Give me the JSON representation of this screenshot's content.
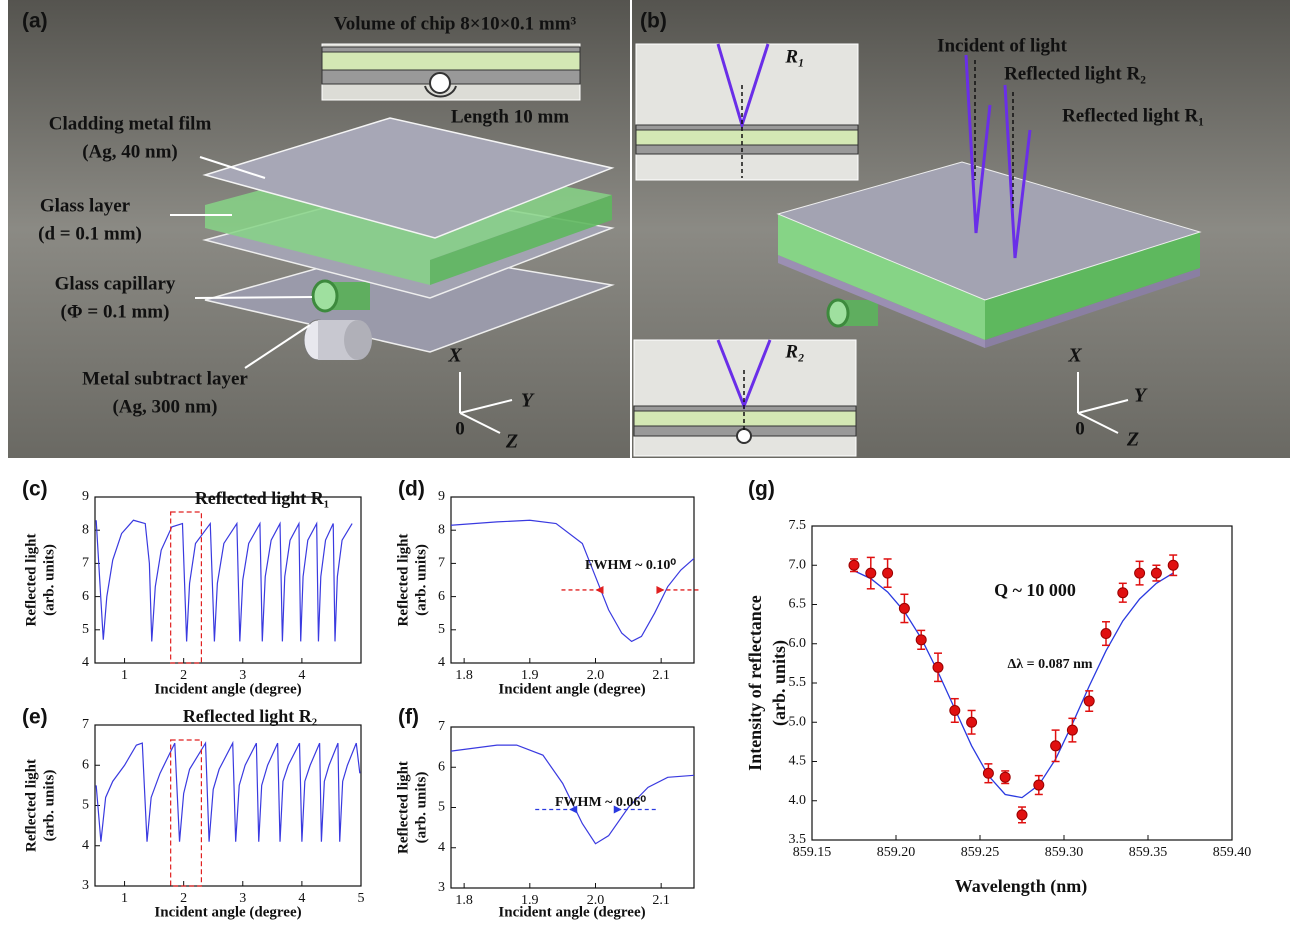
{
  "panels": [
    {
      "label": "(a)",
      "texts": [
        "Volume of chip 8×10×0.1 mm³",
        "Length 10 mm",
        "Cladding metal film",
        "(Ag, 40 nm)",
        "Glass layer",
        "(d = 0.1 mm)",
        "Glass capillary",
        "(Φ = 0.1 mm)",
        "Metal subtract layer",
        "(Ag, 300 nm)"
      ],
      "axes": [
        "X",
        "Y",
        "Z",
        "0"
      ]
    },
    {
      "label": "(b)",
      "texts": [
        "R₁",
        "Incident of light",
        "Reflected light R₂",
        "Reflected light R₁",
        "R₂"
      ],
      "axes": [
        "X",
        "Y",
        "Z",
        "0"
      ]
    }
  ],
  "chart_data": [
    {
      "type": "line",
      "panel": "(c)",
      "title": "Reflected light R₁",
      "ylabel": [
        "Reflected light",
        "(arb. units)"
      ],
      "xlabel": "Incident angle (degree)",
      "xlim": [
        0.5,
        5.0
      ],
      "ylim": [
        4,
        9
      ],
      "xticks": [
        1,
        2,
        3,
        4
      ],
      "yticks": [
        4,
        5,
        6,
        7,
        8,
        9
      ],
      "x": [
        0.52,
        0.64,
        0.7,
        0.8,
        0.95,
        1.15,
        1.35,
        1.42,
        1.46,
        1.52,
        1.62,
        1.8,
        1.98,
        2.05,
        2.1,
        2.2,
        2.45,
        2.52,
        2.57,
        2.68,
        2.9,
        2.95,
        3.0,
        3.1,
        3.29,
        3.33,
        3.38,
        3.48,
        3.63,
        3.67,
        3.71,
        3.8,
        3.95,
        3.98,
        4.02,
        4.1,
        4.25,
        4.28,
        4.32,
        4.4,
        4.53,
        4.56,
        4.6,
        4.68,
        4.85
      ],
      "series": [
        {
          "color": "#3a3ae0",
          "values": [
            8.3,
            4.7,
            6.0,
            7.1,
            7.9,
            8.3,
            8.2,
            7.0,
            4.65,
            6.3,
            7.4,
            8.1,
            8.2,
            4.65,
            6.4,
            7.6,
            8.2,
            4.65,
            6.4,
            7.6,
            8.2,
            4.65,
            6.5,
            7.6,
            8.2,
            4.65,
            6.6,
            7.7,
            8.2,
            4.65,
            6.6,
            7.7,
            8.2,
            4.65,
            6.6,
            7.7,
            8.2,
            4.65,
            6.6,
            7.7,
            8.2,
            4.65,
            6.6,
            7.7,
            8.2
          ]
        }
      ],
      "highlight_x": [
        1.78,
        2.3
      ],
      "highlight_color": "#e02020"
    },
    {
      "type": "line",
      "panel": "(d)",
      "ylabel": [
        "Reflected light",
        "(arb. units)"
      ],
      "xlabel": "Incident angle (degree)",
      "xlim": [
        1.78,
        2.15
      ],
      "ylim": [
        4,
        9
      ],
      "xticks": [
        1.8,
        1.9,
        {
          "value": 2.0,
          "label": "2.0"
        },
        2.1
      ],
      "yticks": [
        4,
        5,
        6,
        7,
        8,
        9
      ],
      "x": [
        1.78,
        1.85,
        1.9,
        1.94,
        1.98,
        2.0,
        2.02,
        2.04,
        2.055,
        2.07,
        2.09,
        2.11,
        2.13,
        2.15
      ],
      "series": [
        {
          "color": "#3a3ae0",
          "values": [
            8.15,
            8.25,
            8.3,
            8.2,
            7.6,
            6.6,
            5.6,
            4.9,
            4.65,
            4.8,
            5.5,
            6.3,
            6.8,
            7.15
          ]
        }
      ],
      "annotations": [
        "FWHM ~ 0.10⁰"
      ],
      "fwhm_x": [
        2.0,
        2.105
      ],
      "fwhm_y": 6.2,
      "fwhm_color": "#e02020"
    },
    {
      "type": "line",
      "panel": "(e)",
      "title": "Reflected light R₂",
      "ylabel": [
        "Reflected light",
        "(arb. units)"
      ],
      "xlabel": "Incident angle (degree)",
      "xlim": [
        0.5,
        5.0
      ],
      "ylim": [
        3,
        7
      ],
      "xticks": [
        1,
        2,
        3,
        4,
        5
      ],
      "yticks": [
        3,
        4,
        5,
        6,
        7
      ],
      "x": [
        0.52,
        0.6,
        0.68,
        0.8,
        1.0,
        1.2,
        1.3,
        1.38,
        1.45,
        1.6,
        1.85,
        1.93,
        2.0,
        2.1,
        2.37,
        2.43,
        2.5,
        2.6,
        2.83,
        2.88,
        2.94,
        3.04,
        3.23,
        3.27,
        3.32,
        3.42,
        3.59,
        3.63,
        3.68,
        3.77,
        3.96,
        4.0,
        4.05,
        4.14,
        4.3,
        4.33,
        4.38,
        4.46,
        4.61,
        4.64,
        4.69,
        4.77,
        4.92,
        4.98
      ],
      "series": [
        {
          "color": "#3a3ae0",
          "values": [
            5.5,
            4.1,
            5.2,
            5.6,
            6.0,
            6.5,
            6.55,
            4.1,
            5.2,
            5.8,
            6.55,
            4.1,
            5.3,
            5.9,
            6.55,
            4.1,
            5.4,
            5.9,
            6.55,
            4.1,
            5.5,
            6.0,
            6.55,
            4.1,
            5.5,
            6.0,
            6.55,
            4.1,
            5.6,
            6.0,
            6.55,
            4.1,
            5.6,
            6.0,
            6.55,
            4.1,
            5.6,
            6.0,
            6.55,
            4.1,
            5.6,
            6.0,
            6.55,
            5.8
          ]
        }
      ],
      "highlight_x": [
        1.78,
        2.3
      ],
      "highlight_color": "#e02020"
    },
    {
      "type": "line",
      "panel": "(f)",
      "ylabel": [
        "Reflected light",
        "(arb. units)"
      ],
      "xlabel": "Incident angle (degree)",
      "xlim": [
        1.78,
        2.15
      ],
      "ylim": [
        3,
        7
      ],
      "xticks": [
        1.8,
        1.9,
        {
          "value": 2.0,
          "label": "2.0"
        },
        2.1
      ],
      "yticks": [
        3,
        4,
        5,
        6,
        7
      ],
      "x": [
        1.78,
        1.85,
        1.88,
        1.92,
        1.95,
        1.98,
        2.0,
        2.02,
        2.05,
        2.08,
        2.11,
        2.15
      ],
      "series": [
        {
          "color": "#3a3ae0",
          "values": [
            6.4,
            6.55,
            6.55,
            6.3,
            5.6,
            4.6,
            4.1,
            4.3,
            5.0,
            5.5,
            5.75,
            5.8
          ]
        }
      ],
      "annotations": [
        "FWHM ~ 0.06⁰"
      ],
      "fwhm_x": [
        1.96,
        2.04
      ],
      "fwhm_y": 4.95,
      "fwhm_color": "#2a3ae0"
    },
    {
      "type": "scatter",
      "panel": "(g)",
      "ylabel": [
        "Intensity of reflectance",
        "(arb. units)"
      ],
      "xlabel": "Wavelength (nm)",
      "xlim": [
        859.15,
        859.4
      ],
      "ylim": [
        3.5,
        7.5
      ],
      "xticks": [
        859.15,
        {
          "value": 859.2,
          "label": "859.20"
        },
        859.25,
        {
          "value": 859.3,
          "label": "859.30"
        },
        859.35,
        {
          "value": 859.4,
          "label": "859.40"
        }
      ],
      "yticks": [
        3.5,
        {
          "value": 4,
          "label": "4.0"
        },
        4.5,
        {
          "value": 5,
          "label": "5.0"
        },
        5.5,
        {
          "value": 6,
          "label": "6.0"
        },
        6.5,
        {
          "value": 7,
          "label": "7.0"
        },
        7.5
      ],
      "series": [
        {
          "color": "#e01010",
          "x": [
            859.175,
            859.185,
            859.195,
            859.205,
            859.215,
            859.225,
            859.235,
            859.245,
            859.255,
            859.265,
            859.275,
            859.285,
            859.295,
            859.305,
            859.315,
            859.325,
            859.335,
            859.345,
            859.355,
            859.365
          ],
          "values": [
            7.0,
            6.9,
            6.9,
            6.45,
            6.05,
            5.7,
            5.15,
            5.0,
            4.35,
            4.3,
            3.82,
            4.2,
            4.7,
            4.9,
            5.27,
            6.13,
            6.65,
            6.9,
            6.9,
            7.0
          ],
          "errors": [
            0.08,
            0.2,
            0.18,
            0.18,
            0.12,
            0.18,
            0.15,
            0.15,
            0.12,
            0.08,
            0.1,
            0.12,
            0.2,
            0.15,
            0.13,
            0.15,
            0.12,
            0.15,
            0.1,
            0.13
          ]
        }
      ],
      "fit": {
        "color": "#2a3ae0",
        "x": [
          859.175,
          859.185,
          859.195,
          859.205,
          859.215,
          859.225,
          859.235,
          859.245,
          859.255,
          859.265,
          859.275,
          859.285,
          859.295,
          859.305,
          859.315,
          859.325,
          859.335,
          859.345,
          859.355,
          859.365
        ],
        "values": [
          6.93,
          6.83,
          6.66,
          6.41,
          6.07,
          5.64,
          5.17,
          4.7,
          4.32,
          4.08,
          4.04,
          4.2,
          4.53,
          4.98,
          5.46,
          5.91,
          6.29,
          6.57,
          6.77,
          6.9
        ]
      },
      "annotations": [
        "Q ~ 10 000",
        "Δλ = 0.087 nm"
      ]
    }
  ]
}
